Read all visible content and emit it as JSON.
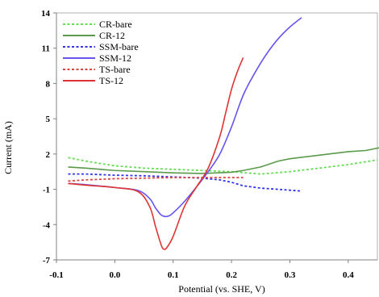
{
  "chart_data": {
    "type": "line",
    "xlabel": "Potential (vs. SHE, V)",
    "ylabel": "Current  (mA)",
    "xlim": [
      -0.1,
      0.45
    ],
    "ylim": [
      -7,
      14
    ],
    "xticks": [
      -0.1,
      0.0,
      0.1,
      0.2,
      0.3,
      0.4
    ],
    "xtick_labels": [
      "-0.1",
      "0.0",
      "0.1",
      "0.2",
      "0.3",
      "0.4"
    ],
    "yticks": [
      -7,
      -4,
      -1,
      2,
      5,
      8,
      11,
      14
    ],
    "ytick_labels": [
      "-7",
      "-4",
      "-1",
      "2",
      "5",
      "8",
      "11",
      "14"
    ],
    "grid": false,
    "legend_position": "top-left",
    "series": [
      {
        "name": "CR-bare",
        "color": "#66dd55",
        "dash": "dashed",
        "x": [
          -0.08,
          -0.05,
          0.0,
          0.05,
          0.1,
          0.15,
          0.2,
          0.25,
          0.3,
          0.35,
          0.4,
          0.45
        ],
        "y": [
          1.7,
          1.4,
          1.0,
          0.8,
          0.7,
          0.6,
          0.5,
          0.3,
          0.5,
          0.8,
          1.1,
          1.5
        ]
      },
      {
        "name": "CR-12",
        "color": "#5a9a4a",
        "dash": "solid",
        "x": [
          -0.08,
          -0.05,
          0.0,
          0.05,
          0.1,
          0.15,
          0.2,
          0.22,
          0.25,
          0.28,
          0.3,
          0.35,
          0.4,
          0.43,
          0.46
        ],
        "y": [
          0.9,
          0.8,
          0.6,
          0.5,
          0.4,
          0.35,
          0.45,
          0.6,
          0.9,
          1.4,
          1.6,
          1.9,
          2.2,
          2.3,
          2.6
        ]
      },
      {
        "name": "SSM-bare",
        "color": "#3333ee",
        "dash": "dashed",
        "x": [
          -0.08,
          -0.05,
          0.0,
          0.05,
          0.1,
          0.15,
          0.18,
          0.2,
          0.22,
          0.25,
          0.28,
          0.32
        ],
        "y": [
          0.3,
          0.3,
          0.2,
          0.15,
          0.05,
          -0.05,
          -0.2,
          -0.4,
          -0.7,
          -0.9,
          -1.0,
          -1.15
        ]
      },
      {
        "name": "SSM-12",
        "color": "#6655ee",
        "dash": "solid",
        "x": [
          -0.08,
          -0.05,
          0.0,
          0.04,
          0.06,
          0.07,
          0.08,
          0.09,
          0.1,
          0.12,
          0.14,
          0.16,
          0.18,
          0.2,
          0.22,
          0.24,
          0.26,
          0.28,
          0.3,
          0.32
        ],
        "y": [
          -0.5,
          -0.6,
          -0.85,
          -1.1,
          -1.8,
          -2.6,
          -3.2,
          -3.3,
          -3.0,
          -2.0,
          -0.8,
          0.5,
          2.0,
          4.3,
          7.0,
          8.9,
          10.5,
          11.8,
          12.8,
          13.6
        ],
        "smooth": true
      },
      {
        "name": "TS-bare",
        "color": "#dd4444",
        "dash": "dashed",
        "x": [
          -0.08,
          -0.05,
          0.0,
          0.05,
          0.1,
          0.15,
          0.2,
          0.22
        ],
        "y": [
          -0.3,
          -0.2,
          -0.1,
          -0.05,
          0.0,
          0.0,
          0.0,
          0.0
        ]
      },
      {
        "name": "TS-12",
        "color": "#dd3333",
        "dash": "solid",
        "x": [
          -0.08,
          -0.05,
          0.0,
          0.04,
          0.06,
          0.07,
          0.08,
          0.085,
          0.09,
          0.1,
          0.12,
          0.14,
          0.16,
          0.18,
          0.19,
          0.2,
          0.21,
          0.22
        ],
        "y": [
          -0.5,
          -0.65,
          -0.85,
          -1.2,
          -2.5,
          -4.2,
          -5.8,
          -6.1,
          -5.9,
          -5.0,
          -2.4,
          -0.8,
          0.8,
          3.5,
          5.5,
          7.5,
          9.0,
          10.2
        ],
        "smooth": true
      }
    ]
  }
}
